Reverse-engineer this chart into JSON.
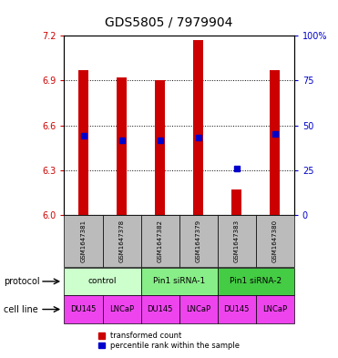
{
  "title": "GDS5805 / 7979904",
  "samples": [
    "GSM1647381",
    "GSM1647378",
    "GSM1647382",
    "GSM1647379",
    "GSM1647383",
    "GSM1647380"
  ],
  "red_values": [
    6.97,
    6.92,
    6.9,
    7.17,
    6.17,
    6.97
  ],
  "blue_values": [
    6.53,
    6.5,
    6.5,
    6.52,
    6.31,
    6.54
  ],
  "ylim_left": [
    6.0,
    7.2
  ],
  "ylim_right": [
    0,
    100
  ],
  "yticks_left": [
    6.0,
    6.3,
    6.6,
    6.9,
    7.2
  ],
  "yticks_right": [
    0,
    25,
    50,
    75,
    100
  ],
  "ytick_labels_right": [
    "0",
    "25",
    "50",
    "75",
    "100%"
  ],
  "bar_width": 0.25,
  "protocols": [
    {
      "label": "control",
      "span": [
        0,
        1
      ],
      "color": "#ccffcc"
    },
    {
      "label": "Pin1 siRNA-1",
      "span": [
        2,
        3
      ],
      "color": "#88ee88"
    },
    {
      "label": "Pin1 siRNA-2",
      "span": [
        4,
        5
      ],
      "color": "#44cc44"
    }
  ],
  "cell_labels": [
    "DU145",
    "LNCaP",
    "DU145",
    "LNCaP",
    "DU145",
    "LNCaP"
  ],
  "cell_color": "#ee44ee",
  "legend_red": "transformed count",
  "legend_blue": "percentile rank within the sample",
  "red_color": "#cc0000",
  "blue_color": "#0000cc",
  "axis_color_left": "#cc0000",
  "axis_color_right": "#0000cc",
  "bg_color": "#ffffff",
  "sample_box_color": "#bbbbbb",
  "title_fontsize": 10
}
